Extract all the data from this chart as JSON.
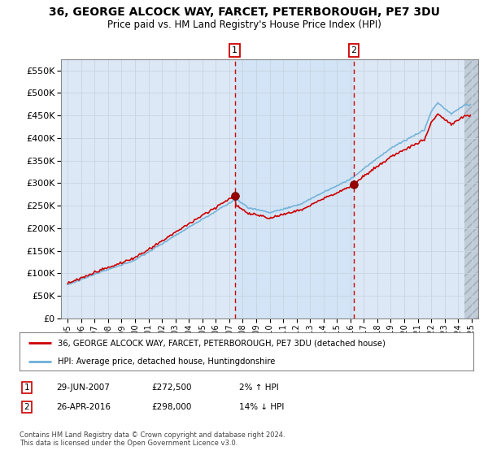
{
  "title": "36, GEORGE ALCOCK WAY, FARCET, PETERBOROUGH, PE7 3DU",
  "subtitle": "Price paid vs. HM Land Registry's House Price Index (HPI)",
  "legend_line1": "36, GEORGE ALCOCK WAY, FARCET, PETERBOROUGH, PE7 3DU (detached house)",
  "legend_line2": "HPI: Average price, detached house, Huntingdonshire",
  "sale1_date": "29-JUN-2007",
  "sale1_price": 272500,
  "sale1_hpi": "2% ↑ HPI",
  "sale2_date": "26-APR-2016",
  "sale2_price": 298000,
  "sale2_hpi": "14% ↓ HPI",
  "footer": "Contains HM Land Registry data © Crown copyright and database right 2024.\nThis data is licensed under the Open Government Licence v3.0.",
  "ylim": [
    0,
    575000
  ],
  "yticks": [
    0,
    50000,
    100000,
    150000,
    200000,
    250000,
    300000,
    350000,
    400000,
    450000,
    500000,
    550000
  ],
  "hpi_color": "#6baed6",
  "price_color": "#cc0000",
  "sale_marker_color": "#990000",
  "dashed_line_color": "#cc0000",
  "bg_color": "#dce8f5",
  "span_color": "#d0e4f7",
  "grid_color": "#c8d4e0",
  "hatch_color": "#c0ccd8"
}
